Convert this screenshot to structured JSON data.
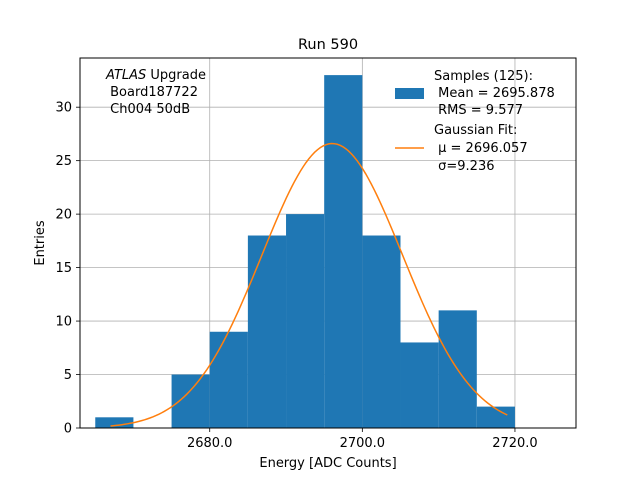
{
  "chart_data": {
    "type": "bar",
    "title": "Run 590",
    "xlabel": "Energy [ADC Counts]",
    "ylabel": "Entries",
    "xlim": [
      2663,
      2728
    ],
    "ylim": [
      0,
      34.6
    ],
    "grid": true,
    "x_ticks": [
      2680,
      2700,
      2720
    ],
    "x_tick_labels": [
      "2680.0",
      "2700.0",
      "2720.0"
    ],
    "y_ticks": [
      0,
      5,
      10,
      15,
      20,
      25,
      30
    ],
    "y_tick_labels": [
      "0",
      "5",
      "10",
      "15",
      "20",
      "25",
      "30"
    ],
    "bin_edges": [
      2665,
      2670,
      2675,
      2680,
      2685,
      2690,
      2695,
      2700,
      2705,
      2710,
      2715,
      2720,
      2725
    ],
    "bin_counts": [
      1,
      0,
      5,
      9,
      18,
      20,
      33,
      18,
      8,
      11,
      2,
      0
    ],
    "series": [
      {
        "name": "Samples (125):",
        "kind": "histogram",
        "color": "#1f77b4"
      },
      {
        "name": "Gaussian Fit:",
        "kind": "line",
        "color": "#ff7f0e",
        "mu": 2696.057,
        "sigma": 9.236,
        "amplitude": 26.6,
        "x_range": [
          2667,
          2719
        ]
      }
    ],
    "annotation": {
      "line1_italic": "ATLAS",
      "line1_rest": " Upgrade",
      "line2": " Board187722",
      "line3": " Ch004 50dB"
    },
    "legend": {
      "position": "top-right",
      "samples_title": "Samples (125):",
      "samples_mean": " Mean = 2695.878",
      "samples_rms": " RMS = 9.577",
      "fit_title": "Gaussian Fit:",
      "fit_mu": " μ = 2696.057",
      "fit_sigma": " σ=9.236"
    }
  }
}
